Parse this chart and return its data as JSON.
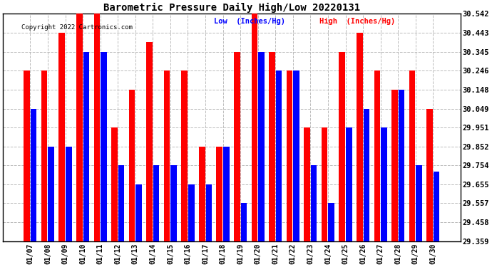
{
  "title": "Barometric Pressure Daily High/Low 20220131",
  "copyright": "Copyright 2022 Cartronics.com",
  "legend_low": "Low  (Inches/Hg)",
  "legend_high": "High  (Inches/Hg)",
  "dates": [
    "01/07",
    "01/08",
    "01/09",
    "01/10",
    "01/11",
    "01/12",
    "01/13",
    "01/14",
    "01/15",
    "01/16",
    "01/17",
    "01/18",
    "01/19",
    "01/20",
    "01/21",
    "01/22",
    "01/23",
    "01/24",
    "01/25",
    "01/26",
    "01/27",
    "01/28",
    "01/29",
    "01/30"
  ],
  "high_values": [
    30.246,
    30.246,
    30.443,
    30.542,
    30.542,
    29.951,
    30.148,
    30.395,
    30.246,
    30.246,
    29.852,
    29.852,
    30.345,
    30.542,
    30.345,
    30.246,
    29.951,
    29.951,
    30.345,
    30.443,
    30.246,
    30.148,
    30.246,
    30.049
  ],
  "low_values": [
    30.049,
    29.852,
    29.852,
    30.345,
    30.345,
    29.754,
    29.655,
    29.754,
    29.754,
    29.655,
    29.655,
    29.852,
    29.557,
    30.345,
    30.246,
    30.246,
    29.754,
    29.557,
    29.951,
    30.049,
    29.951,
    30.148,
    29.754,
    29.722
  ],
  "ylim_min": 29.359,
  "ylim_max": 30.542,
  "yticks": [
    29.359,
    29.458,
    29.557,
    29.655,
    29.754,
    29.852,
    29.951,
    30.049,
    30.148,
    30.246,
    30.345,
    30.443,
    30.542
  ],
  "bg_color": "#ffffff",
  "bar_color_high": "#ff0000",
  "bar_color_low": "#0000ff",
  "grid_color": "#bbbbbb",
  "title_color": "#000000",
  "copyright_color": "#000000",
  "legend_low_color": "#0000ff",
  "legend_high_color": "#ff0000"
}
